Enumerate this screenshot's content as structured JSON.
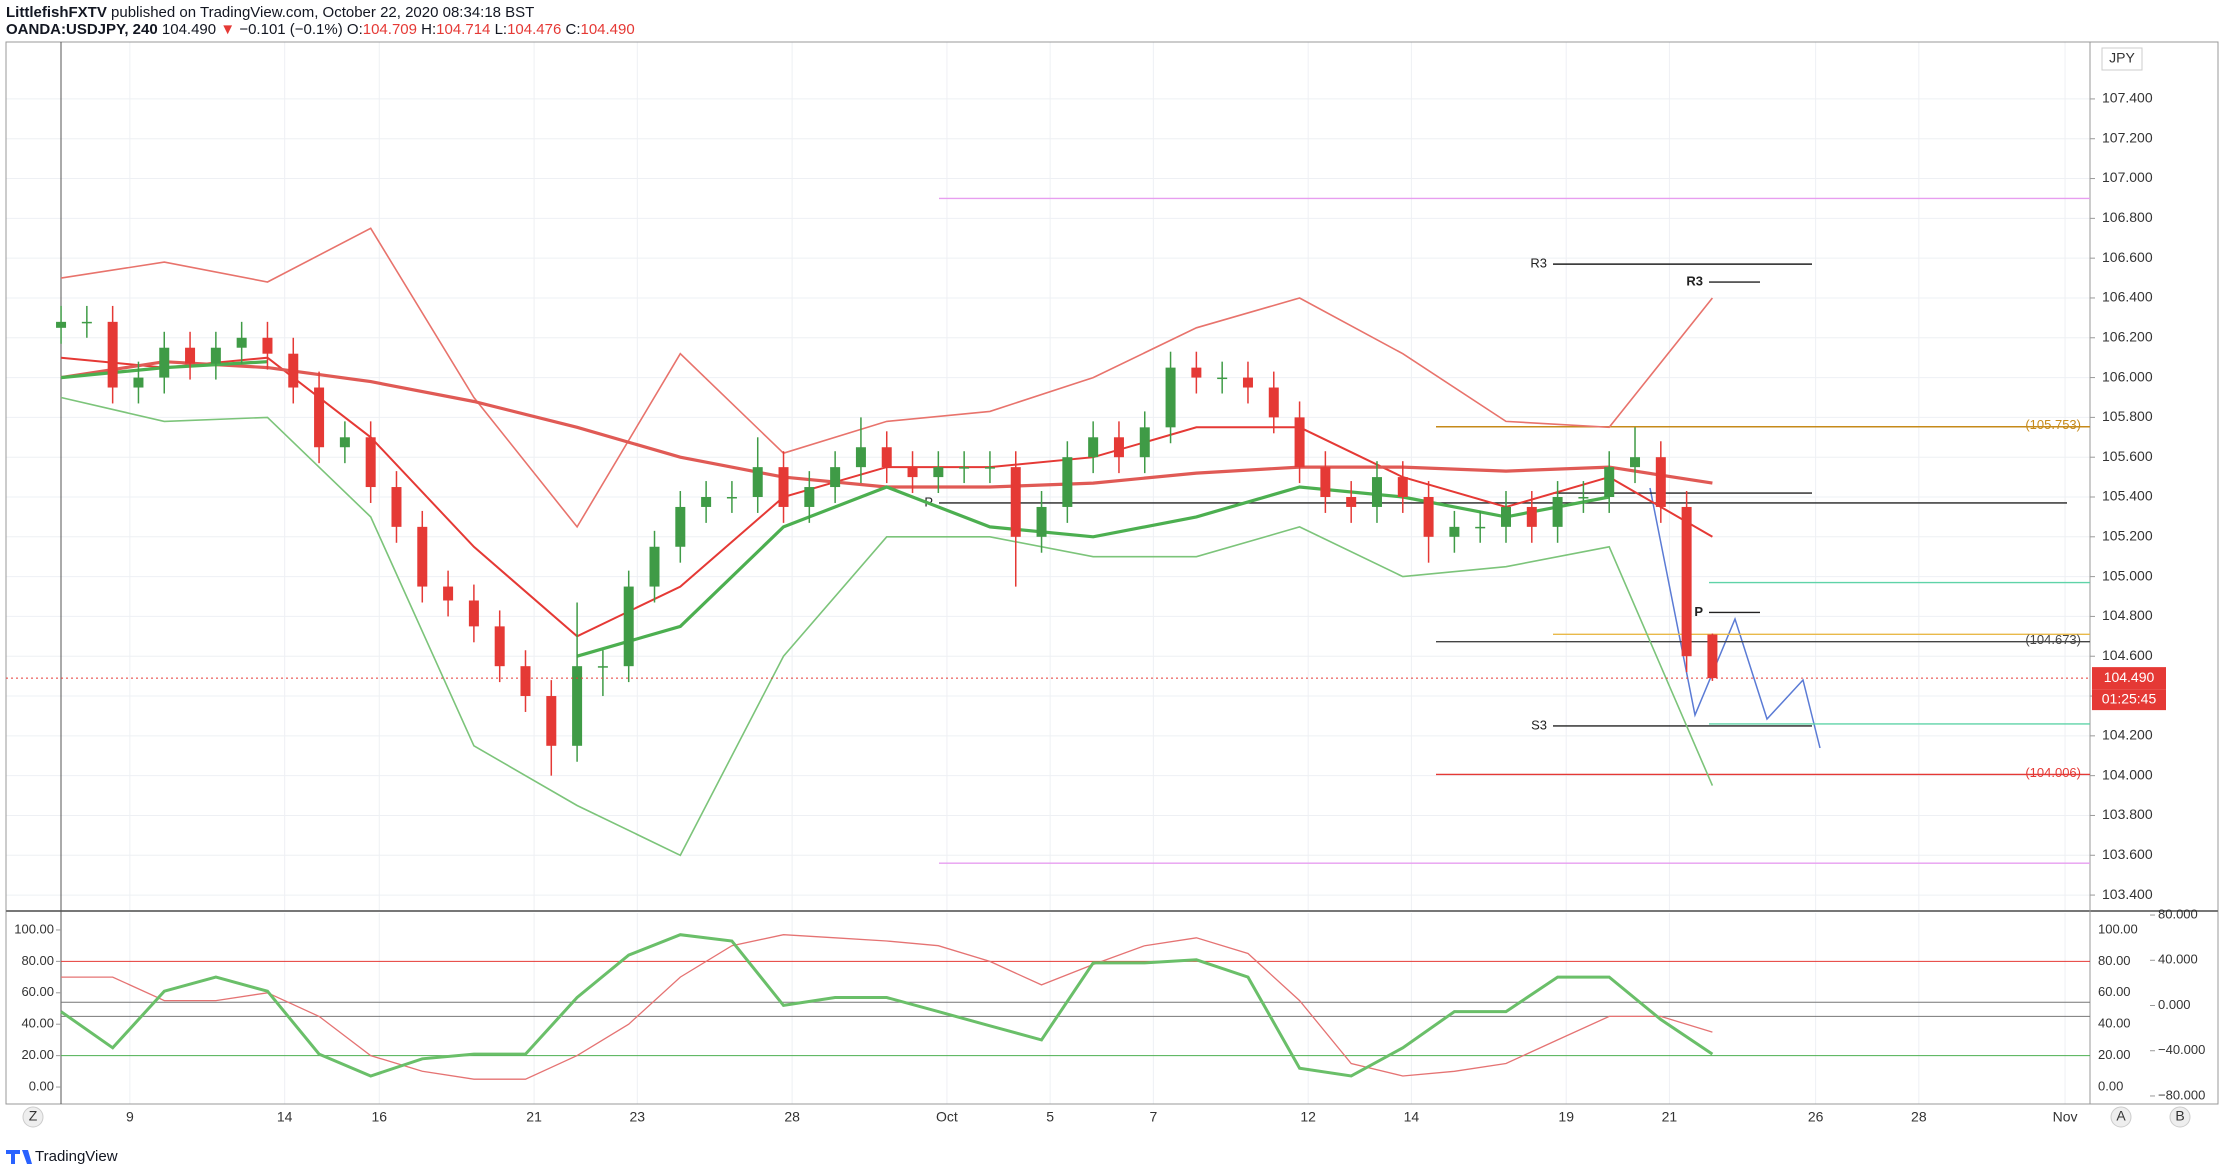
{
  "header": {
    "author": "LittlefishFXTV",
    "published": "published on TradingView.com, October 22, 2020 08:34:18 BST",
    "symbol": "OANDA:USDJPY, 240",
    "last": "104.490",
    "arrow": "▼",
    "change": "−0.101 (−0.1%)",
    "ohlc": [
      {
        "key": "O:",
        "value": "104.709"
      },
      {
        "key": "H:",
        "value": "104.714"
      },
      {
        "key": "L:",
        "value": "104.476"
      },
      {
        "key": "C:",
        "value": "104.490"
      }
    ]
  },
  "chart_data": [
    {
      "type": "candlestick",
      "currency": "JPY",
      "up_color": "#3f9b46",
      "down_color": "#e53935",
      "x": [
        0,
        3,
        6,
        9,
        12,
        15,
        18,
        21,
        24,
        27,
        30,
        33,
        36,
        39,
        42,
        45,
        48,
        51,
        54,
        57,
        60,
        63,
        66,
        69,
        72,
        75,
        78,
        81,
        84,
        87,
        90,
        93,
        96,
        99,
        102,
        105,
        108,
        111,
        114,
        117,
        120,
        123,
        126,
        129,
        132,
        135,
        138,
        141,
        144,
        147,
        150,
        153,
        156,
        159,
        162,
        165,
        168,
        171,
        174,
        177,
        180,
        183,
        186,
        189,
        192
      ],
      "open": [
        106.25,
        106.28,
        106.28,
        105.95,
        106.0,
        106.15,
        106.07,
        106.15,
        106.2,
        106.12,
        105.95,
        105.65,
        105.7,
        105.45,
        105.25,
        104.95,
        104.88,
        104.75,
        104.55,
        104.4,
        104.15,
        104.55,
        104.55,
        104.95,
        105.15,
        105.35,
        105.4,
        105.4,
        105.55,
        105.35,
        105.45,
        105.55,
        105.65,
        105.55,
        105.5,
        105.55,
        105.55,
        105.55,
        105.2,
        105.35,
        105.6,
        105.7,
        105.6,
        105.75,
        106.05,
        106.0,
        106.0,
        105.95,
        105.8,
        105.55,
        105.4,
        105.35,
        105.5,
        105.4,
        105.2,
        105.25,
        105.25,
        105.35,
        105.25,
        105.4,
        105.4,
        105.55,
        105.6,
        105.35,
        104.709
      ],
      "high": [
        106.36,
        106.36,
        106.36,
        106.08,
        106.23,
        106.23,
        106.23,
        106.28,
        106.28,
        106.2,
        106.03,
        105.78,
        105.78,
        105.53,
        105.33,
        105.03,
        104.96,
        104.83,
        104.63,
        104.48,
        104.87,
        104.63,
        105.03,
        105.23,
        105.43,
        105.48,
        105.48,
        105.7,
        105.63,
        105.53,
        105.63,
        105.8,
        105.73,
        105.63,
        105.63,
        105.63,
        105.63,
        105.63,
        105.43,
        105.68,
        105.78,
        105.78,
        105.83,
        106.13,
        106.13,
        106.08,
        106.08,
        106.03,
        105.88,
        105.63,
        105.48,
        105.58,
        105.58,
        105.48,
        105.33,
        105.33,
        105.43,
        105.43,
        105.48,
        105.48,
        105.63,
        105.75,
        105.68,
        105.43,
        104.714
      ],
      "low": [
        106.17,
        106.2,
        105.87,
        105.87,
        105.92,
        105.99,
        105.99,
        106.07,
        106.04,
        105.87,
        105.57,
        105.57,
        105.37,
        105.17,
        104.87,
        104.8,
        104.67,
        104.47,
        104.32,
        104.0,
        104.07,
        104.4,
        104.47,
        104.87,
        105.07,
        105.27,
        105.32,
        105.32,
        105.27,
        105.27,
        105.37,
        105.47,
        105.47,
        105.42,
        105.42,
        105.47,
        105.47,
        104.95,
        105.12,
        105.27,
        105.52,
        105.52,
        105.52,
        105.67,
        105.92,
        105.92,
        105.87,
        105.72,
        105.47,
        105.32,
        105.27,
        105.27,
        105.32,
        105.07,
        105.12,
        105.17,
        105.17,
        105.17,
        105.17,
        105.32,
        105.32,
        105.47,
        105.27,
        104.52,
        104.476
      ],
      "close": [
        106.28,
        106.28,
        105.95,
        106.0,
        106.15,
        106.07,
        106.15,
        106.2,
        106.12,
        105.95,
        105.65,
        105.7,
        105.45,
        105.25,
        104.95,
        104.88,
        104.75,
        104.55,
        104.4,
        104.15,
        104.55,
        104.55,
        104.95,
        105.15,
        105.35,
        105.4,
        105.4,
        105.55,
        105.35,
        105.45,
        105.55,
        105.65,
        105.55,
        105.5,
        105.55,
        105.55,
        105.55,
        105.2,
        105.35,
        105.6,
        105.7,
        105.6,
        105.75,
        106.05,
        106.0,
        106.0,
        105.95,
        105.8,
        105.55,
        105.4,
        105.35,
        105.5,
        105.4,
        105.2,
        105.25,
        105.25,
        105.35,
        105.25,
        105.4,
        105.4,
        105.55,
        105.6,
        105.35,
        104.6,
        104.49
      ],
      "lines": [
        {
          "color": "#e8736c",
          "width": 1.6,
          "x": [
            0,
            12,
            24,
            36,
            48,
            60,
            72,
            84,
            96,
            108,
            120,
            132,
            144,
            156,
            168,
            180,
            192
          ],
          "values": [
            106.5,
            106.58,
            106.48,
            106.75,
            105.9,
            105.25,
            106.12,
            105.62,
            105.78,
            105.83,
            106.0,
            106.25,
            106.4,
            106.12,
            105.78,
            105.75,
            106.4
          ]
        },
        {
          "color": "#7cc47a",
          "width": 1.6,
          "x": [
            0,
            12,
            24,
            36,
            48,
            60,
            72,
            84,
            96,
            108,
            120,
            132,
            144,
            156,
            168,
            180,
            192
          ],
          "values": [
            105.9,
            105.78,
            105.8,
            105.3,
            104.15,
            103.85,
            103.6,
            104.6,
            105.2,
            105.2,
            105.1,
            105.1,
            105.25,
            105.0,
            105.05,
            105.15,
            103.95
          ]
        },
        {
          "color": "#e53935",
          "width": 2,
          "x": [
            0,
            12,
            24,
            36,
            48,
            60,
            72,
            84,
            96,
            108,
            120,
            132,
            144,
            156,
            168,
            180,
            192
          ],
          "values": [
            106.1,
            106.05,
            106.1,
            105.7,
            105.15,
            104.7,
            104.95,
            105.4,
            105.55,
            105.55,
            105.6,
            105.75,
            105.75,
            105.5,
            105.35,
            105.5,
            105.2
          ]
        },
        {
          "color": "#e05a55",
          "width": 3.2,
          "x": [
            0,
            12,
            24,
            36,
            48,
            60,
            72,
            84,
            96,
            108,
            120,
            132,
            144,
            156,
            168,
            180,
            192
          ],
          "values": [
            106.0,
            106.08,
            106.05,
            105.98,
            105.88,
            105.75,
            105.6,
            105.5,
            105.45,
            105.45,
            105.47,
            105.52,
            105.55,
            105.55,
            105.53,
            105.55,
            105.47
          ]
        },
        {
          "color": "#4caf50",
          "width": 3.2,
          "x": [
            0,
            12,
            24,
            36,
            48,
            60,
            72,
            84,
            96,
            108,
            120,
            132,
            144,
            156,
            168,
            180,
            192
          ],
          "values": [
            106.0,
            106.05,
            106.08,
            null,
            null,
            104.6,
            104.75,
            105.25,
            105.45,
            105.25,
            105.2,
            105.3,
            105.45,
            105.4,
            105.3,
            105.4,
            null
          ]
        }
      ],
      "levels": [
        {
          "value": 106.9,
          "color": "#e79ef0"
        },
        {
          "value": 103.56,
          "color": "#e79ef0"
        },
        {
          "value": 106.57,
          "color": "#222222",
          "label": "R3"
        },
        {
          "value": 106.48,
          "color": "#222222",
          "label": "R3"
        },
        {
          "value": 105.753,
          "color": "#c68a1a",
          "label": "(105.753)"
        },
        {
          "value": 105.42,
          "color": "#222222"
        },
        {
          "value": 105.37,
          "color": "#222222",
          "label": "P"
        },
        {
          "value": 104.97,
          "color": "#5fd3a8"
        },
        {
          "value": 104.82,
          "color": "#222222",
          "label": "P"
        },
        {
          "value": 104.71,
          "color": "#e9b949"
        },
        {
          "value": 104.673,
          "color": "#444444",
          "label": "(104.673)"
        },
        {
          "value": 104.25,
          "color": "#222222",
          "label": "S3"
        },
        {
          "value": 104.26,
          "color": "#5fd3a8"
        },
        {
          "value": 104.006,
          "color": "#e53935",
          "label": "(104.006)"
        }
      ],
      "price_tag": {
        "value": 104.49,
        "label": "104.490",
        "countdown": "01:25:45"
      },
      "xlim": [
        -6.4,
        235.9
      ],
      "ylim": [
        103.325,
        107.686
      ],
      "xticks": [
        {
          "value": 8,
          "label": "9"
        },
        {
          "value": 26,
          "label": "14"
        },
        {
          "value": 37,
          "label": "16"
        },
        {
          "value": 55,
          "label": "21"
        },
        {
          "value": 67,
          "label": "23"
        },
        {
          "value": 85,
          "label": "28"
        },
        {
          "value": 103,
          "label": "Oct"
        },
        {
          "value": 115,
          "label": "5"
        },
        {
          "value": 127,
          "label": "7"
        },
        {
          "value": 145,
          "label": "12"
        },
        {
          "value": 157,
          "label": "14"
        },
        {
          "value": 175,
          "label": "19"
        },
        {
          "value": 187,
          "label": "21"
        },
        {
          "value": 204,
          "label": "26"
        },
        {
          "value": 216,
          "label": "28"
        },
        {
          "value": 233,
          "label": "Nov"
        }
      ],
      "yticks": [
        {
          "value": 107.4,
          "label": "107.400"
        },
        {
          "value": 107.2,
          "label": "107.200"
        },
        {
          "value": 107.0,
          "label": "107.000"
        },
        {
          "value": 106.8,
          "label": "106.800"
        },
        {
          "value": 106.6,
          "label": "106.600"
        },
        {
          "value": 106.4,
          "label": "106.400"
        },
        {
          "value": 106.2,
          "label": "106.200"
        },
        {
          "value": 106.0,
          "label": "106.000"
        },
        {
          "value": 105.8,
          "label": "105.800"
        },
        {
          "value": 105.6,
          "label": "105.600"
        },
        {
          "value": 105.4,
          "label": "105.400"
        },
        {
          "value": 105.2,
          "label": "105.200"
        },
        {
          "value": 105.0,
          "label": "105.000"
        },
        {
          "value": 104.8,
          "label": "104.800"
        },
        {
          "value": 104.6,
          "label": "104.600"
        },
        {
          "value": 104.4,
          "label": "104.400"
        },
        {
          "value": 104.2,
          "label": "104.200"
        },
        {
          "value": 104.0,
          "label": "104.000"
        },
        {
          "value": 103.8,
          "label": "103.800"
        },
        {
          "value": 103.6,
          "label": "103.600"
        },
        {
          "value": 103.4,
          "label": "103.400"
        }
      ],
      "grid": true
    },
    {
      "type": "line",
      "series": [
        {
          "color": "#e57373",
          "width": 1.3,
          "x": [
            0,
            6,
            12,
            18,
            24,
            30,
            36,
            42,
            48,
            54,
            60,
            66,
            72,
            78,
            84,
            90,
            96,
            102,
            108,
            114,
            120,
            126,
            132,
            138,
            144,
            150,
            156,
            162,
            168,
            174,
            180,
            186,
            192
          ],
          "values": [
            70,
            70,
            55,
            55,
            60,
            45,
            20,
            10,
            5,
            5,
            20,
            40,
            70,
            90,
            97,
            95,
            93,
            90,
            80,
            65,
            78,
            90,
            95,
            85,
            55,
            15,
            7,
            10,
            15,
            30,
            45,
            45,
            35
          ]
        },
        {
          "color": "#6abf69",
          "width": 3,
          "x": [
            0,
            6,
            12,
            18,
            24,
            30,
            36,
            42,
            48,
            54,
            60,
            66,
            72,
            78,
            84,
            90,
            96,
            102,
            108,
            114,
            120,
            126,
            132,
            138,
            144,
            150,
            156,
            162,
            168,
            174,
            180,
            186,
            192
          ],
          "values": [
            48,
            25,
            61,
            70,
            61,
            21,
            7,
            18,
            21,
            21,
            57,
            84,
            97,
            93,
            52,
            57,
            57,
            48,
            39,
            30,
            79,
            79,
            81,
            70,
            12,
            7,
            25,
            48,
            48,
            70,
            70,
            43,
            21
          ]
        }
      ],
      "levels": [
        {
          "value": 80,
          "color": "#e53935"
        },
        {
          "value": 54,
          "color": "#777777"
        },
        {
          "value": 45,
          "color": "#777777"
        },
        {
          "value": 20,
          "color": "#4caf50"
        }
      ],
      "ylim": [
        -10.8,
        110.8
      ],
      "yticks": [
        {
          "value": 100,
          "label": "100.00"
        },
        {
          "value": 80,
          "label": "80.00"
        },
        {
          "value": 60,
          "label": "60.00"
        },
        {
          "value": 40,
          "label": "40.00"
        },
        {
          "value": 20,
          "label": "20.00"
        },
        {
          "value": 0,
          "label": "0.00"
        }
      ],
      "y2lim": [
        -87.1,
        81.8
      ],
      "y2ticks": [
        {
          "value": 80,
          "label": "80.000"
        },
        {
          "value": 40,
          "label": "40.000"
        },
        {
          "value": 0,
          "label": "0.000"
        },
        {
          "value": -40,
          "label": "−40.000"
        },
        {
          "value": -80,
          "label": "−80.000"
        }
      ]
    }
  ],
  "footer": {
    "brand": "TradingView",
    "buttons": [
      "Z",
      "A",
      "B"
    ]
  }
}
